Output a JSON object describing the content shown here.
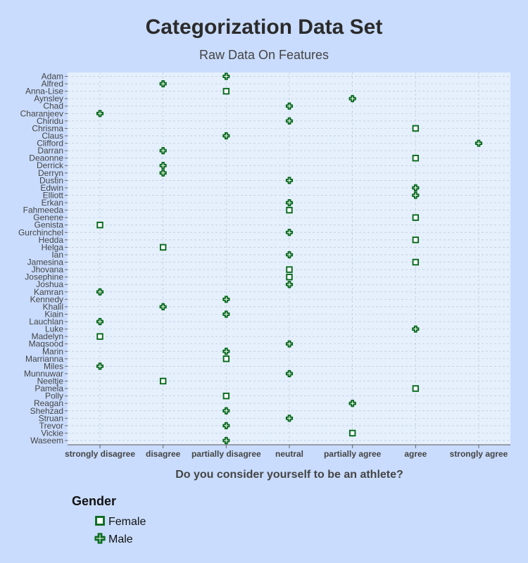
{
  "chart_data": {
    "type": "scatter",
    "title": "Categorization Data Set",
    "subtitle": "Raw Data On Features",
    "xlabel": "Do you consider yourself to be an athlete?",
    "ylabel": "",
    "x_categories": [
      "strongly disagree",
      "disagree",
      "partially disagree",
      "neutral",
      "partially agree",
      "agree",
      "strongly agree"
    ],
    "y_categories": [
      "Adam",
      "Alfred",
      "Anna-Lise",
      "Aynsley",
      "Chad",
      "Charanjeev",
      "Chiridu",
      "Chrisma",
      "Claus",
      "Clifford",
      "Darran",
      "Deaonne",
      "Derrick",
      "Derryn",
      "Dustin",
      "Edwin",
      "Elliott",
      "Erkan",
      "Fahmeeda",
      "Genene",
      "Genista",
      "Gurchinchel",
      "Hedda",
      "Helga",
      "Ian",
      "Jamesina",
      "Jhovana",
      "Josephine",
      "Joshua",
      "Kamran",
      "Kennedy",
      "Khalil",
      "Kiain",
      "Lauchlan",
      "Luke",
      "Madelyn",
      "Maqsood",
      "Marin",
      "Marrianna",
      "Miles",
      "Munnuwar",
      "Neeltje",
      "Pamela",
      "Polly",
      "Reagan",
      "Shehzad",
      "Struan",
      "Trevor",
      "Vickie",
      "Waseem"
    ],
    "grid": true,
    "legend": {
      "title": "Gender",
      "placement": "bottom-left"
    },
    "series": [
      {
        "name": "Female",
        "marker": "square",
        "color": "#0a6b1f",
        "points": [
          {
            "y": "Anna-Lise",
            "x": "partially disagree"
          },
          {
            "y": "Chrisma",
            "x": "agree"
          },
          {
            "y": "Deaonne",
            "x": "agree"
          },
          {
            "y": "Fahmeeda",
            "x": "neutral"
          },
          {
            "y": "Genene",
            "x": "agree"
          },
          {
            "y": "Genista",
            "x": "strongly disagree"
          },
          {
            "y": "Hedda",
            "x": "agree"
          },
          {
            "y": "Helga",
            "x": "disagree"
          },
          {
            "y": "Jamesina",
            "x": "agree"
          },
          {
            "y": "Jhovana",
            "x": "neutral"
          },
          {
            "y": "Josephine",
            "x": "neutral"
          },
          {
            "y": "Madelyn",
            "x": "strongly disagree"
          },
          {
            "y": "Marrianna",
            "x": "partially disagree"
          },
          {
            "y": "Neeltje",
            "x": "disagree"
          },
          {
            "y": "Pamela",
            "x": "agree"
          },
          {
            "y": "Polly",
            "x": "partially disagree"
          },
          {
            "y": "Vickie",
            "x": "partially agree"
          }
        ]
      },
      {
        "name": "Male",
        "marker": "cross",
        "color": "#0a6b1f",
        "points": [
          {
            "y": "Adam",
            "x": "partially disagree"
          },
          {
            "y": "Alfred",
            "x": "disagree"
          },
          {
            "y": "Aynsley",
            "x": "partially agree"
          },
          {
            "y": "Chad",
            "x": "neutral"
          },
          {
            "y": "Charanjeev",
            "x": "strongly disagree"
          },
          {
            "y": "Chiridu",
            "x": "neutral"
          },
          {
            "y": "Claus",
            "x": "partially disagree"
          },
          {
            "y": "Clifford",
            "x": "strongly agree"
          },
          {
            "y": "Darran",
            "x": "disagree"
          },
          {
            "y": "Derrick",
            "x": "disagree"
          },
          {
            "y": "Derryn",
            "x": "disagree"
          },
          {
            "y": "Dustin",
            "x": "neutral"
          },
          {
            "y": "Edwin",
            "x": "agree"
          },
          {
            "y": "Elliott",
            "x": "agree"
          },
          {
            "y": "Erkan",
            "x": "neutral"
          },
          {
            "y": "Gurchinchel",
            "x": "neutral"
          },
          {
            "y": "Ian",
            "x": "neutral"
          },
          {
            "y": "Joshua",
            "x": "neutral"
          },
          {
            "y": "Kamran",
            "x": "strongly disagree"
          },
          {
            "y": "Kennedy",
            "x": "partially disagree"
          },
          {
            "y": "Khalil",
            "x": "disagree"
          },
          {
            "y": "Kiain",
            "x": "partially disagree"
          },
          {
            "y": "Lauchlan",
            "x": "strongly disagree"
          },
          {
            "y": "Luke",
            "x": "agree"
          },
          {
            "y": "Maqsood",
            "x": "neutral"
          },
          {
            "y": "Marin",
            "x": "partially disagree"
          },
          {
            "y": "Miles",
            "x": "strongly disagree"
          },
          {
            "y": "Munnuwar",
            "x": "neutral"
          },
          {
            "y": "Reagan",
            "x": "partially agree"
          },
          {
            "y": "Shehzad",
            "x": "partially disagree"
          },
          {
            "y": "Struan",
            "x": "neutral"
          },
          {
            "y": "Trevor",
            "x": "partially disagree"
          },
          {
            "y": "Waseem",
            "x": "partially disagree"
          }
        ]
      }
    ]
  }
}
